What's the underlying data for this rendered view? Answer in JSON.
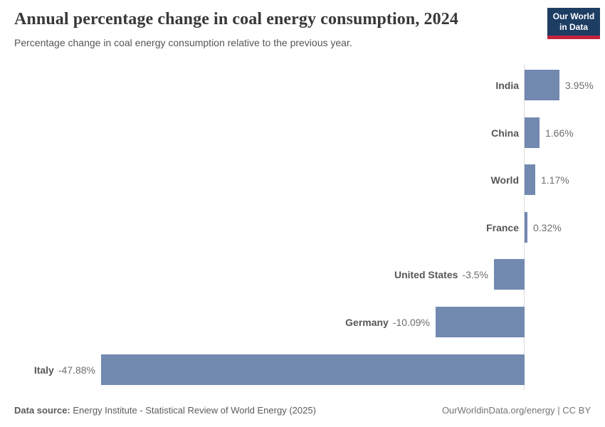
{
  "header": {
    "title": "Annual percentage change in coal energy consumption, 2024",
    "subtitle": "Percentage change in coal energy consumption relative to the previous year."
  },
  "logo": {
    "line1": "Our World",
    "line2": "in Data",
    "bg_color": "#1d3d63",
    "accent_color": "#c4243c"
  },
  "chart_data": {
    "type": "bar",
    "orientation": "horizontal",
    "title": "Annual percentage change in coal energy consumption, 2024",
    "categories": [
      "India",
      "China",
      "World",
      "France",
      "United States",
      "Germany",
      "Italy"
    ],
    "values": [
      3.95,
      1.66,
      1.17,
      0.32,
      -3.5,
      -10.09,
      -47.88
    ],
    "value_labels": [
      "3.95%",
      "1.66%",
      "1.17%",
      "0.32%",
      "-3.5%",
      "-10.09%",
      "-47.88%"
    ],
    "unit": "%",
    "xlim": [
      -47.88,
      3.95
    ],
    "grid": false,
    "legend": "none",
    "bar_color": "#7289b0",
    "axis_line_color": "#dadada"
  },
  "footer": {
    "source_label": "Data source:",
    "source_text": "Energy Institute - Statistical Review of World Energy (2025)",
    "right_text": "OurWorldinData.org/energy | CC BY"
  }
}
